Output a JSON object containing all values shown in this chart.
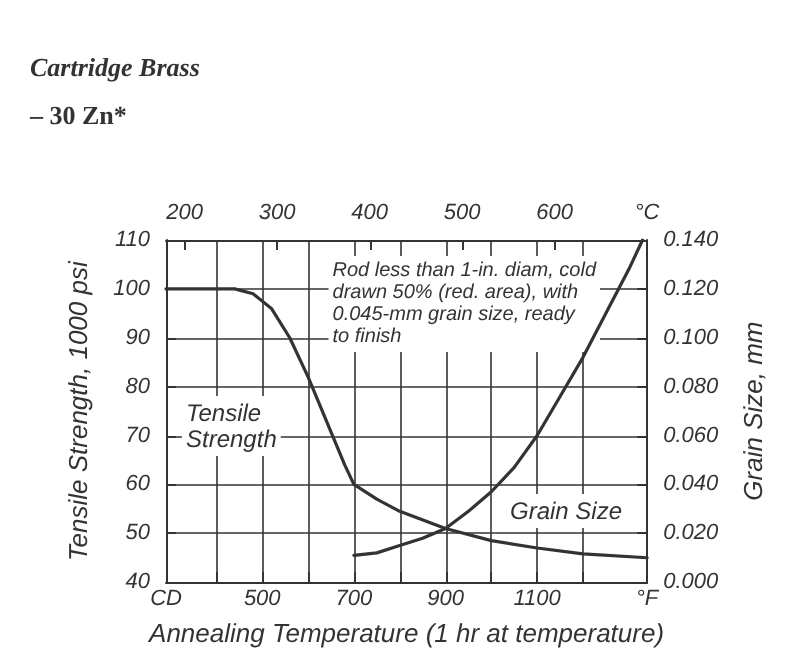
{
  "chart_data": {
    "type": "line",
    "title": "Cartridge Brass",
    "subtitle": "– 30 Zn*",
    "xlabel": "Annealing Temperature (1 hr at temperature)",
    "ylabel": "Tensile Strength, 1000 psi",
    "y2label": "Grain Size, mm",
    "series": [
      {
        "color": "#333333",
        "x": [
          290,
          350,
          440,
          480,
          520,
          560,
          600,
          640,
          680,
          700,
          750,
          800,
          900,
          1000,
          1100,
          1200,
          1340
        ],
        "values": [
          100,
          100,
          100,
          99,
          96,
          90,
          82,
          73,
          64,
          60,
          57,
          54.5,
          51,
          48.5,
          47,
          45.8,
          45
        ]
      },
      {
        "color": "#333333",
        "axis": "y2",
        "x": [
          700,
          750,
          800,
          850,
          900,
          950,
          1000,
          1050,
          1100,
          1150,
          1200,
          1250,
          1300,
          1330
        ],
        "values": [
          0.011,
          0.012,
          0.015,
          0.018,
          0.022,
          0.029,
          0.037,
          0.047,
          0.06,
          0.076,
          0.092,
          0.11,
          0.128,
          0.14
        ]
      }
    ],
    "xlim": [
      290,
      1340
    ],
    "xticks": [
      {
        "value": 290,
        "label": "CD"
      },
      {
        "value": 400,
        "label": null
      },
      500,
      {
        "value": 600,
        "label": null
      },
      700,
      {
        "value": 800,
        "label": null
      },
      900,
      {
        "value": 1000,
        "label": null
      },
      1100,
      {
        "value": 1200,
        "label": null
      },
      {
        "value": 1340,
        "label": "°F"
      }
    ],
    "x2lim": [
      180,
      700
    ],
    "x2ticks": [
      200,
      300,
      400,
      500,
      600,
      {
        "value": 700,
        "label": "°C"
      }
    ],
    "ylim": [
      40,
      110
    ],
    "yticks": [
      40,
      50,
      60,
      70,
      80,
      90,
      100,
      110
    ],
    "y2lim": [
      0,
      0.14
    ],
    "y2ticks": [
      {
        "value": 0,
        "label": "0.000"
      },
      {
        "value": 0.02,
        "label": "0.020"
      },
      {
        "value": 0.04,
        "label": "0.040"
      },
      {
        "value": 0.06,
        "label": "0.060"
      },
      {
        "value": 0.08,
        "label": "0.080"
      },
      {
        "value": 0.1,
        "label": "0.100"
      },
      {
        "value": 0.12,
        "label": "0.120"
      },
      {
        "value": 0.14,
        "label": "0.140"
      }
    ],
    "grid": true,
    "marker": "none",
    "line_style": "solid",
    "annotations": [
      "Rod less than 1-in. diam, cold\ndrawn 50% (red. area), with\n0.045-mm grain size, ready\nto finish",
      "Tensile\nStrength",
      "Grain Size"
    ]
  }
}
